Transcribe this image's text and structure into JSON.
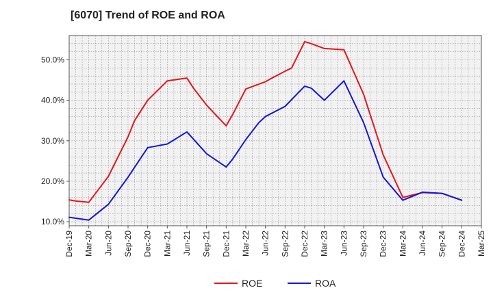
{
  "chart_data": {
    "type": "line",
    "title": "[6070]  Trend of ROE and ROA",
    "x": [
      "Dec-19",
      "Mar-20",
      "Jun-20",
      "Sep-20",
      "Dec-20",
      "Mar-21",
      "Jun-21",
      "Sep-21",
      "Dec-21",
      "Mar-22",
      "Jun-22",
      "Sep-22",
      "Dec-22",
      "Mar-23",
      "Jun-23",
      "Sep-23",
      "Dec-23",
      "Mar-24",
      "Jun-24",
      "Sep-24",
      "Dec-24",
      "Mar-25"
    ],
    "y_ticks": [
      "10.0%",
      "20.0%",
      "30.0%",
      "40.0%",
      "50.0%"
    ],
    "ylim": [
      9.0,
      56.0
    ],
    "grid": true,
    "legend_position": "bottom",
    "series": [
      {
        "name": "ROE",
        "color": "#e8141b",
        "points": [
          [
            "Dec-19",
            15.4
          ],
          [
            "Jan-20",
            15.1
          ],
          [
            "Mar-20",
            14.8
          ],
          [
            "Jun-20",
            21.2
          ],
          [
            "Sep-20",
            31.0
          ],
          [
            "Oct-20",
            35.0
          ],
          [
            "Dec-20",
            40.0
          ],
          [
            "Mar-21",
            44.8
          ],
          [
            "Jun-21",
            45.5
          ],
          [
            "Jul-21",
            43.0
          ],
          [
            "Sep-21",
            38.8
          ],
          [
            "Dec-21",
            33.7
          ],
          [
            "Jan-22",
            36.5
          ],
          [
            "Mar-22",
            42.8
          ],
          [
            "Jun-22",
            44.6
          ],
          [
            "Jul-22",
            45.5
          ],
          [
            "Sep-22",
            47.2
          ],
          [
            "Oct-22",
            48.0
          ],
          [
            "Dec-22",
            54.5
          ],
          [
            "Jan-23",
            54.0
          ],
          [
            "Mar-23",
            52.8
          ],
          [
            "Jun-23",
            52.5
          ],
          [
            "Sep-23",
            41.5
          ],
          [
            "Dec-23",
            26.5
          ],
          [
            "Mar-24",
            16.0
          ],
          [
            "Jun-24",
            17.2
          ],
          [
            "Sep-24",
            17.0
          ],
          [
            "Dec-24",
            15.3
          ]
        ]
      },
      {
        "name": "ROA",
        "color": "#1515dc",
        "points": [
          [
            "Dec-19",
            11.1
          ],
          [
            "Mar-20",
            10.4
          ],
          [
            "Jun-20",
            14.3
          ],
          [
            "Sep-20",
            21.0
          ],
          [
            "Dec-20",
            28.3
          ],
          [
            "Mar-21",
            29.2
          ],
          [
            "Jun-21",
            32.2
          ],
          [
            "Sep-21",
            26.8
          ],
          [
            "Dec-21",
            23.5
          ],
          [
            "Jan-22",
            25.5
          ],
          [
            "Mar-22",
            30.3
          ],
          [
            "May-22",
            34.5
          ],
          [
            "Jun-22",
            36.0
          ],
          [
            "Sep-22",
            38.5
          ],
          [
            "Dec-22",
            43.5
          ],
          [
            "Jan-23",
            43.0
          ],
          [
            "Mar-23",
            40.0
          ],
          [
            "Jun-23",
            44.8
          ],
          [
            "Sep-23",
            34.5
          ],
          [
            "Dec-23",
            21.0
          ],
          [
            "Mar-24",
            15.3
          ],
          [
            "Jun-24",
            17.3
          ],
          [
            "Sep-24",
            17.0
          ],
          [
            "Dec-24",
            15.3
          ]
        ]
      }
    ]
  }
}
